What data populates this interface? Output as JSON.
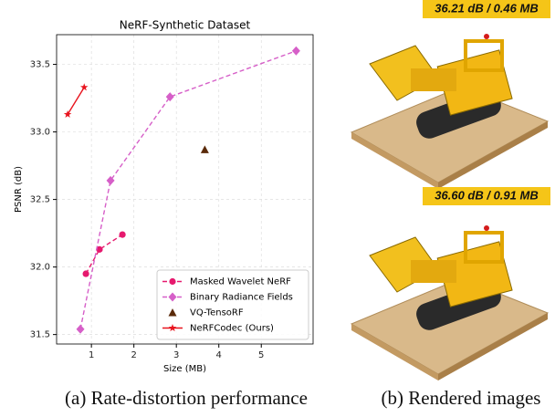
{
  "chart_data": {
    "type": "line",
    "title": "NeRF-Synthetic Dataset",
    "xlabel": "Size (MB)",
    "ylabel": "PSNR (dB)",
    "xlim": [
      0.18,
      6.22
    ],
    "ylim": [
      31.43,
      33.72
    ],
    "xticks": [
      1,
      2,
      3,
      4,
      5
    ],
    "yticks": [
      31.5,
      {
        "value": 32,
        "label": "32.0"
      },
      32.5,
      {
        "value": 33,
        "label": "33.0"
      },
      33.5
    ],
    "grid": true,
    "legend": "lower right",
    "series": [
      {
        "name": "Masked Wavelet NeRF",
        "color": "#e6196e",
        "marker": "circle",
        "linestyle": "dashed",
        "x": [
          0.87,
          1.19,
          1.73
        ],
        "values": [
          31.95,
          32.13,
          32.24
        ]
      },
      {
        "name": "Binary Radiance Fields",
        "color": "#d65fc8",
        "marker": "diamond",
        "linestyle": "dashed",
        "x": [
          0.74,
          1.45,
          2.85,
          5.82
        ],
        "values": [
          31.54,
          32.64,
          33.26,
          33.6
        ]
      },
      {
        "name": "VQ-TensoRF",
        "color": "#5a2a0a",
        "marker": "triangle",
        "linestyle": "none",
        "x": [
          3.67
        ],
        "values": [
          32.87
        ]
      },
      {
        "name": "NeRFCodec (Ours)",
        "color": "#e8141e",
        "marker": "star",
        "linestyle": "solid",
        "x": [
          0.44,
          0.83
        ],
        "values": [
          33.13,
          33.33
        ]
      }
    ]
  },
  "images": [
    {
      "label": "36.21 dB / 0.46 MB"
    },
    {
      "label": "36.60 dB / 0.91 MB"
    }
  ],
  "captions": [
    "(a) Rate-distortion performance",
    "(b) Rendered images"
  ]
}
